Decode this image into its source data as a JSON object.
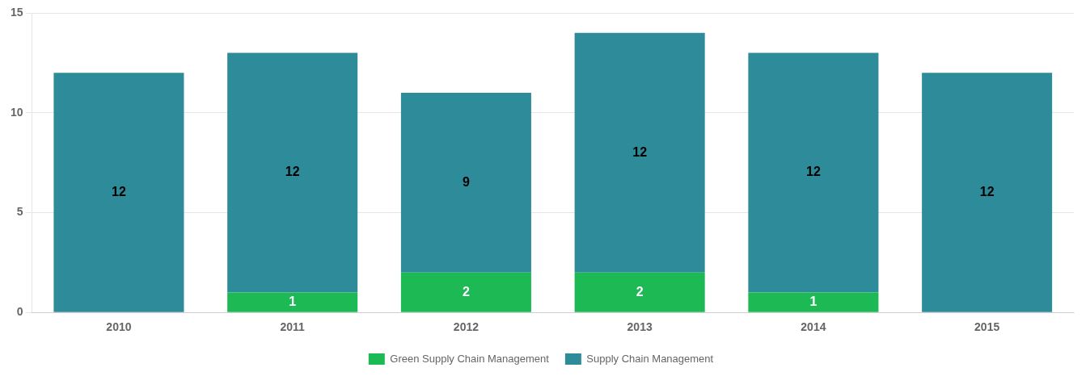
{
  "chart_data": {
    "type": "bar",
    "stacked": true,
    "categories": [
      "2010",
      "2011",
      "2012",
      "2013",
      "2014",
      "2015"
    ],
    "series": [
      {
        "name": "Green Supply Chain Management",
        "color": "#1db954",
        "values": [
          0,
          1,
          2,
          2,
          1,
          0
        ]
      },
      {
        "name": "Supply Chain Management",
        "color": "#2e8b9a",
        "values": [
          12,
          12,
          9,
          12,
          12,
          12
        ]
      }
    ],
    "ylim": [
      0,
      15
    ],
    "yticks": [
      0,
      5,
      10,
      15
    ],
    "grid": true,
    "legend": "bottom",
    "data_labels": true
  }
}
